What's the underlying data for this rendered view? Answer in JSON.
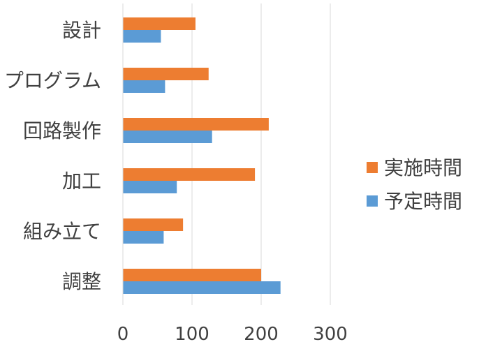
{
  "chart_data": {
    "type": "bar",
    "orientation": "horizontal",
    "categories": [
      "設計",
      "プログラム",
      "回路製作",
      "加工",
      "組み立て",
      "調整"
    ],
    "series": [
      {
        "name": "実施時間",
        "color": "#ED7D31",
        "values": [
          105,
          124,
          211,
          191,
          87,
          200
        ]
      },
      {
        "name": "予定時間",
        "color": "#5B9BD5",
        "values": [
          55,
          61,
          129,
          78,
          59,
          228
        ]
      }
    ],
    "xticks": [
      "0",
      "100",
      "200",
      "300"
    ],
    "xlim": [
      0,
      300
    ],
    "grid": true,
    "legend_position": "right"
  }
}
